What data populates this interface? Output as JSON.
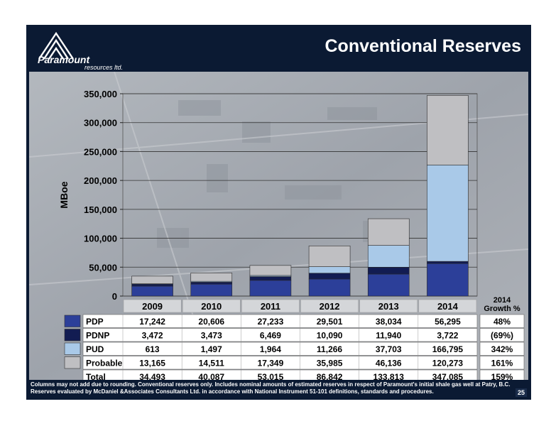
{
  "header": {
    "title": "Conventional Reserves",
    "logo_name": "Paramount",
    "logo_sub": "resources ltd."
  },
  "colors": {
    "slide_bg": "#0b1a33",
    "PDP": "#2c3f99",
    "PDNP": "#121c52",
    "PUD": "#a9c9e8",
    "Probable": "#bfbfc2"
  },
  "chart_data": {
    "type": "bar",
    "stacked": true,
    "ylabel": "MBoe",
    "ylim": [
      0,
      350000
    ],
    "yticks": [
      "0",
      "50,000",
      "100,000",
      "150,000",
      "200,000",
      "250,000",
      "300,000",
      "350,000"
    ],
    "categories": [
      "2009",
      "2010",
      "2011",
      "2012",
      "2013",
      "2014"
    ],
    "series": [
      {
        "name": "PDP",
        "values": [
          17242,
          20606,
          27233,
          29501,
          38034,
          56295
        ],
        "labels": [
          "17,242",
          "20,606",
          "27,233",
          "29,501",
          "38,034",
          "56,295"
        ],
        "growth": "48%"
      },
      {
        "name": "PDNP",
        "values": [
          3472,
          3473,
          6469,
          10090,
          11940,
          3722
        ],
        "labels": [
          "3,472",
          "3,473",
          "6,469",
          "10,090",
          "11,940",
          "3,722"
        ],
        "growth": "(69%)"
      },
      {
        "name": "PUD",
        "values": [
          613,
          1497,
          1964,
          11266,
          37703,
          166795
        ],
        "labels": [
          "613",
          "1,497",
          "1,964",
          "11,266",
          "37,703",
          "166,795"
        ],
        "growth": "342%"
      },
      {
        "name": "Probable",
        "values": [
          13165,
          14511,
          17349,
          35985,
          46136,
          120273
        ],
        "labels": [
          "13,165",
          "14,511",
          "17,349",
          "35,985",
          "46,136",
          "120,273"
        ],
        "growth": "161%"
      }
    ],
    "total": {
      "name": "Total",
      "labels": [
        "34,493",
        "40,087",
        "53,015",
        "86,842",
        "133,813",
        "347,085"
      ],
      "growth": "159%"
    },
    "growth_header": [
      "2014",
      "Growth %"
    ]
  },
  "footnote": "Columns may not add due to rounding. Conventional reserves only. Includes nominal amounts of estimated reserves in respect of Paramount's initial shale gas well at Patry, B.C. Reserves evaluated by McDaniel &Associates Consultants Ltd. in accordance with National Instrument 51-101 definitions, standards and procedures.",
  "page_number": "25"
}
